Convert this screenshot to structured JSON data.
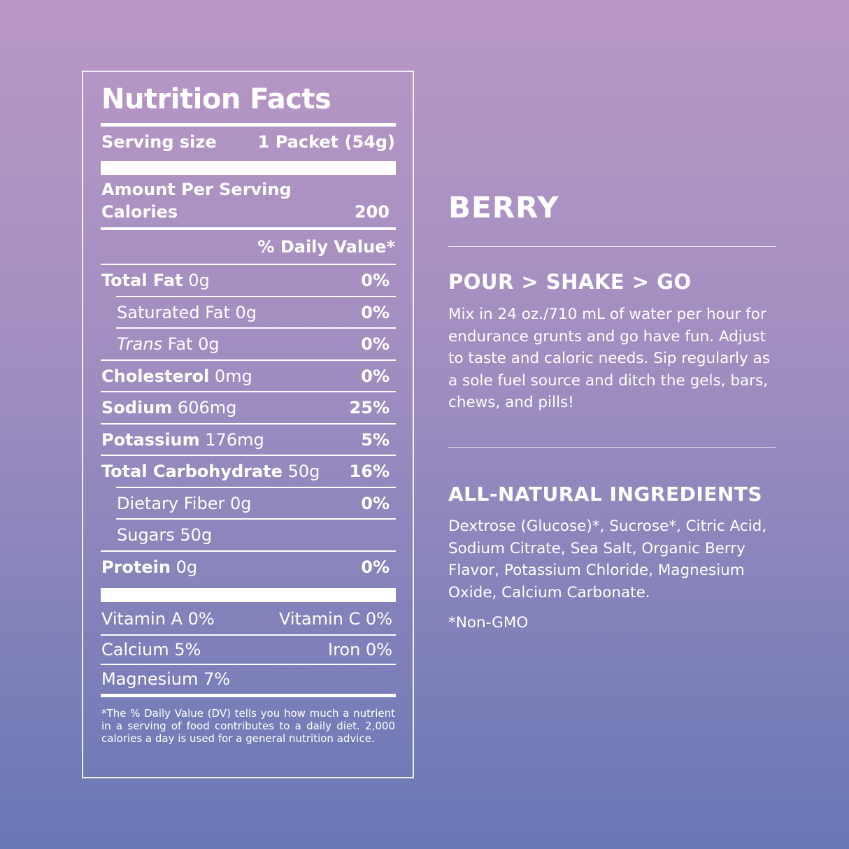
{
  "label": {
    "title": "Nutrition Facts",
    "serving_label": "Serving size",
    "serving_value": "1 Packet (54g)",
    "amount_per_serving": "Amount Per Serving",
    "calories_label": "Calories",
    "calories_value": "200",
    "daily_value_header": "% Daily Value*",
    "nutrients": [
      {
        "name": "Total Fat",
        "amount": "0g",
        "dv": "0%"
      },
      {
        "name": "Saturated Fat",
        "amount": "0g",
        "dv": "0%"
      },
      {
        "name": "Trans",
        "name_rest": "Fat",
        "amount": "0g",
        "dv": "0%"
      },
      {
        "name": "Cholesterol",
        "amount": "0mg",
        "dv": "0%"
      },
      {
        "name": "Sodium",
        "amount": "606mg",
        "dv": "25%"
      },
      {
        "name": "Potassium",
        "amount": "176mg",
        "dv": "5%"
      },
      {
        "name": "Total Carbohydrate",
        "amount": "50g",
        "dv": "16%"
      },
      {
        "name": "Dietary Fiber",
        "amount": "0g",
        "dv": "0%"
      },
      {
        "name": "Sugars",
        "amount": "50g",
        "dv": ""
      },
      {
        "name": "Protein",
        "amount": "0g",
        "dv": "0%"
      }
    ],
    "vitamin_a": "Vitamin A 0%",
    "vitamin_c": "Vitamin C 0%",
    "calcium": "Calcium 5%",
    "iron": "Iron 0%",
    "magnesium": "Magnesium 7%",
    "footnote": "*The % Daily Value (DV) tells you how much a nutrient in a serving of food contributes to a daily diet. 2,000 calories a day is used for a general nutrition advice."
  },
  "info": {
    "flavor": "BERRY",
    "directions_heading": "POUR > SHAKE > GO",
    "directions_text": "Mix in 24 oz./710 mL of water per hour for endurance grunts and go have fun. Adjust to taste and caloric needs. Sip regularly as a sole fuel source and ditch the gels, bars, chews, and pills!",
    "ingredients_heading": "ALL-NATURAL INGREDIENTS",
    "ingredients_text": "Dextrose (Glucose)*, Sucrose*, Citric Acid, Sodium Citrate, Sea Salt, Organic Berry Flavor, Potassium Chloride, Magnesium Oxide, Calcium Carbonate.",
    "non_gmo": "*Non-GMO"
  },
  "colors": {
    "background_top": "#ba98c5",
    "background_bottom": "#6877b5",
    "text": "#ffffff"
  }
}
